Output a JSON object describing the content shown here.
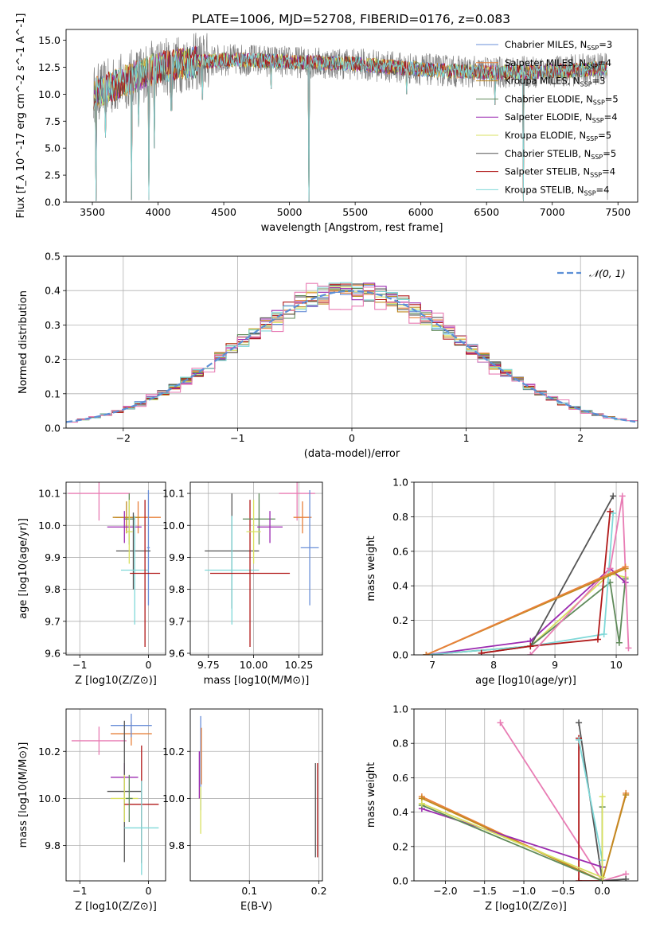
{
  "figure_title": "PLATE=1006, MJD=52708, FIBERID=0176, z=0.083",
  "colors": {
    "Chabrier MILES": "#6a8fd8",
    "Salpeter MILES": "#e8803a",
    "Kroupa MILES": "#c08a20",
    "Chabrier ELODIE": "#5f8a5a",
    "Salpeter ELODIE": "#9b2ab0",
    "Kroupa ELODIE": "#d8e060",
    "Chabrier STELIB": "#555555",
    "Salpeter STELIB": "#b01818",
    "Kroupa STELIB": "#7fd8d8",
    "extra_pink": "#e87cb4",
    "spectrum_grey": "#808080",
    "gaussian": "#5b8fd6"
  },
  "chart_data": [
    {
      "id": "spectrum",
      "type": "line",
      "title": "PLATE=1006, MJD=52708, FIBERID=0176, z=0.083",
      "xlabel": "wavelength [Angstrom, rest frame]",
      "ylabel": "Flux [f_λ 10^-17 erg cm^-2 s^-1 A^-1]",
      "xlim": [
        3300,
        7650
      ],
      "ylim": [
        0,
        16
      ],
      "xticks": [
        3500,
        4000,
        4500,
        5000,
        5500,
        6000,
        6500,
        7000,
        7500
      ],
      "yticks": [
        0.0,
        2.5,
        5.0,
        7.5,
        10.0,
        12.5,
        15.0
      ],
      "grid": false,
      "legend_position": "top-right",
      "legend": [
        {
          "label": "Chabrier MILES, N",
          "sub": "SSP",
          "tail": "=3",
          "color_key": "Chabrier MILES"
        },
        {
          "label": "Salpeter MILES, N",
          "sub": "SSP",
          "tail": "=4",
          "color_key": "Salpeter MILES"
        },
        {
          "label": "Kroupa MILES, N",
          "sub": "SSP",
          "tail": "=3",
          "color_key": "Kroupa MILES"
        },
        {
          "label": "Chabrier ELODIE, N",
          "sub": "SSP",
          "tail": "=5",
          "color_key": "Chabrier ELODIE"
        },
        {
          "label": "Salpeter ELODIE, N",
          "sub": "SSP",
          "tail": "=4",
          "color_key": "Salpeter ELODIE"
        },
        {
          "label": "Kroupa ELODIE, N",
          "sub": "SSP",
          "tail": "=5",
          "color_key": "Kroupa ELODIE"
        },
        {
          "label": "Chabrier STELIB, N",
          "sub": "SSP",
          "tail": "=5",
          "color_key": "Chabrier STELIB"
        },
        {
          "label": "Salpeter STELIB, N",
          "sub": "SSP",
          "tail": "=4",
          "color_key": "Salpeter STELIB"
        },
        {
          "label": "Kroupa STELIB, N",
          "sub": "SSP",
          "tail": "=4",
          "color_key": "Kroupa STELIB"
        }
      ],
      "continuum": [
        [
          3510,
          10.0
        ],
        [
          3700,
          11.0
        ],
        [
          4000,
          12.5
        ],
        [
          4300,
          13.0
        ],
        [
          4600,
          13.2
        ],
        [
          5000,
          13.0
        ],
        [
          5500,
          12.8
        ],
        [
          6000,
          12.3
        ],
        [
          6500,
          12.0
        ],
        [
          7000,
          12.1
        ],
        [
          7400,
          12.4
        ]
      ],
      "features": [
        [
          3530,
          0.1
        ],
        [
          3600,
          6.0
        ],
        [
          3800,
          0.2
        ],
        [
          3850,
          7.0
        ],
        [
          3930,
          0.2
        ],
        [
          3970,
          5.0
        ],
        [
          4101,
          8.5
        ],
        [
          4340,
          9.5
        ],
        [
          4861,
          10.5
        ],
        [
          5150,
          0.0
        ],
        [
          5890,
          10.0
        ],
        [
          6563,
          9.0
        ],
        [
          6780,
          0.1
        ],
        [
          7420,
          0.2
        ]
      ]
    },
    {
      "id": "residuals",
      "type": "histogram",
      "xlabel": "(data-model)/error",
      "ylabel": "Normed distribution",
      "xlim": [
        -2.5,
        2.5
      ],
      "ylim": [
        0,
        0.5
      ],
      "xticks": [
        -2,
        -1,
        0,
        1,
        2
      ],
      "yticks": [
        0.0,
        0.1,
        0.2,
        0.3,
        0.4,
        0.5
      ],
      "grid": true,
      "legend_position": "top-right",
      "legend_label": "𝒩(0, 1)",
      "bin_width": 0.1,
      "reference_curve": "gaussian N(0,1)"
    },
    {
      "id": "age_vs_Z",
      "type": "errorbar",
      "xlabel": "Z [log10(Z/Z⊙)]",
      "ylabel": "age [log10(age/yr)]",
      "xlim": [
        -1.2,
        0.25
      ],
      "ylim": [
        9.595,
        10.135
      ],
      "xticks": [
        -1,
        0
      ],
      "yticks": [
        9.6,
        9.7,
        9.8,
        9.9,
        10.0,
        10.1
      ],
      "grid": true,
      "points": [
        {
          "c": "extra_pink",
          "x": -0.72,
          "xerr": 0.45,
          "y": 10.1,
          "yerr": 0.085
        },
        {
          "c": "Salpeter MILES",
          "x": -0.15,
          "xerr": 0.33,
          "y": 10.025,
          "yerr": 0.05
        },
        {
          "c": "Kroupa MILES",
          "x": -0.32,
          "xerr": 0.2,
          "y": 10.025,
          "yerr": 0.05
        },
        {
          "c": "Chabrier ELODIE",
          "x": -0.28,
          "xerr": 0.08,
          "y": 10.02,
          "yerr": 0.08
        },
        {
          "c": "Salpeter ELODIE",
          "x": -0.35,
          "xerr": 0.25,
          "y": 9.995,
          "yerr": 0.05
        },
        {
          "c": "Chabrier MILES",
          "x": 0.0,
          "xerr": 0.02,
          "y": 9.93,
          "yerr": 0.18
        },
        {
          "c": "Chabrier STELIB",
          "x": -0.22,
          "xerr": 0.25,
          "y": 9.92,
          "yerr": 0.12
        },
        {
          "c": "Kroupa STELIB",
          "x": -0.2,
          "xerr": 0.2,
          "y": 9.86,
          "yerr": 0.17
        },
        {
          "c": "Salpeter STELIB",
          "x": -0.05,
          "xerr": 0.22,
          "y": 9.85,
          "yerr": 0.23
        },
        {
          "c": "Kroupa ELODIE",
          "x": -0.28,
          "xerr": 0.05,
          "y": 9.98,
          "yerr": 0.1
        }
      ]
    },
    {
      "id": "age_vs_mass",
      "type": "errorbar",
      "xlabel": "mass [log10(M/M⊙)]",
      "ylabel": "",
      "xlim": [
        9.65,
        10.38
      ],
      "ylim": [
        9.595,
        10.135
      ],
      "xticks": [
        9.75,
        10.0,
        10.25
      ],
      "yticks": [
        9.6,
        9.7,
        9.8,
        9.9,
        10.0,
        10.1
      ],
      "grid": true,
      "points": [
        {
          "c": "extra_pink",
          "x": 10.24,
          "xerr": 0.1,
          "y": 10.1,
          "yerr": 0.085
        },
        {
          "c": "Salpeter MILES",
          "x": 10.27,
          "xerr": 0.05,
          "y": 10.025,
          "yerr": 0.05
        },
        {
          "c": "Chabrier MILES",
          "x": 10.31,
          "xerr": 0.05,
          "y": 9.93,
          "yerr": 0.18
        },
        {
          "c": "Chabrier STELIB",
          "x": 9.88,
          "xerr": 0.15,
          "y": 9.92,
          "yerr": 0.18
        },
        {
          "c": "Kroupa STELIB",
          "x": 9.88,
          "xerr": 0.15,
          "y": 9.86,
          "yerr": 0.17
        },
        {
          "c": "Salpeter STELIB",
          "x": 9.98,
          "xerr": 0.22,
          "y": 9.85,
          "yerr": 0.23
        },
        {
          "c": "Chabrier ELODIE",
          "x": 10.03,
          "xerr": 0.09,
          "y": 10.02,
          "yerr": 0.08
        },
        {
          "c": "Salpeter ELODIE",
          "x": 10.09,
          "xerr": 0.07,
          "y": 9.995,
          "yerr": 0.05
        },
        {
          "c": "Kroupa ELODIE",
          "x": 10.0,
          "xerr": 0.04,
          "y": 9.98,
          "yerr": 0.1
        }
      ]
    },
    {
      "id": "weight_vs_age",
      "type": "line",
      "xlabel": "age [log10(age/yr)]",
      "ylabel": "mass weight",
      "xlim": [
        6.7,
        10.35
      ],
      "ylim": [
        0,
        1.0
      ],
      "xticks": [
        7,
        8,
        9,
        10
      ],
      "yticks": [
        0.0,
        0.2,
        0.4,
        0.6,
        0.8,
        1.0
      ],
      "grid": true,
      "series": [
        {
          "c": "Kroupa ELODIE",
          "pts": [
            [
              6.9,
              0.0
            ],
            [
              8.6,
              0.05
            ],
            [
              9.9,
              0.47
            ],
            [
              10.15,
              0.45
            ]
          ]
        },
        {
          "c": "Chabrier ELODIE",
          "pts": [
            [
              6.9,
              0.0
            ],
            [
              8.6,
              0.05
            ],
            [
              9.9,
              0.42
            ],
            [
              10.05,
              0.07
            ],
            [
              10.15,
              0.44
            ]
          ]
        },
        {
          "c": "Salpeter ELODIE",
          "pts": [
            [
              6.9,
              0.0
            ],
            [
              8.6,
              0.08
            ],
            [
              9.9,
              0.5
            ],
            [
              10.15,
              0.42
            ]
          ]
        },
        {
          "c": "Kroupa STELIB",
          "pts": [
            [
              6.9,
              0.0
            ],
            [
              8.6,
              0.05
            ],
            [
              9.8,
              0.12
            ],
            [
              9.95,
              0.82
            ]
          ]
        },
        {
          "c": "Chabrier STELIB",
          "pts": [
            [
              7.8,
              0.01
            ],
            [
              8.6,
              0.05
            ],
            [
              9.95,
              0.92
            ]
          ]
        },
        {
          "c": "Salpeter STELIB",
          "pts": [
            [
              7.8,
              0.01
            ],
            [
              8.6,
              0.05
            ],
            [
              9.7,
              0.09
            ],
            [
              9.9,
              0.83
            ]
          ]
        },
        {
          "c": "extra_pink",
          "pts": [
            [
              8.6,
              0.0
            ],
            [
              9.9,
              0.5
            ],
            [
              10.1,
              0.92
            ],
            [
              10.2,
              0.04
            ]
          ]
        },
        {
          "c": "Kroupa MILES",
          "pts": [
            [
              6.9,
              0.0
            ],
            [
              10.15,
              0.5
            ]
          ]
        },
        {
          "c": "Salpeter MILES",
          "pts": [
            [
              6.9,
              0.0
            ],
            [
              10.15,
              0.51
            ]
          ]
        }
      ]
    },
    {
      "id": "mass_vs_Z",
      "type": "errorbar",
      "xlabel": "Z [log10(Z/Z⊙)]",
      "ylabel": "mass [log10(M/M⊙)]",
      "xlim": [
        -1.2,
        0.25
      ],
      "ylim": [
        9.65,
        10.38
      ],
      "xticks": [
        -1,
        0
      ],
      "yticks": [
        9.8,
        10.0,
        10.2
      ],
      "grid": true,
      "points": [
        {
          "c": "extra_pink",
          "x": -0.72,
          "xerr": 0.4,
          "y": 10.245,
          "yerr": 0.06
        },
        {
          "c": "Salpeter MILES",
          "x": -0.25,
          "xerr": 0.3,
          "y": 10.275,
          "yerr": 0.05
        },
        {
          "c": "Chabrier MILES",
          "x": -0.25,
          "xerr": 0.3,
          "y": 10.31,
          "yerr": 0.05
        },
        {
          "c": "Salpeter ELODIE",
          "x": -0.35,
          "xerr": 0.2,
          "y": 10.09,
          "yerr": 0.06
        },
        {
          "c": "Chabrier STELIB",
          "x": -0.35,
          "xerr": 0.25,
          "y": 10.03,
          "yerr": 0.3
        },
        {
          "c": "Kroupa ELODIE",
          "x": -0.35,
          "xerr": 0.2,
          "y": 10.0,
          "yerr": 0.1
        },
        {
          "c": "Salpeter STELIB",
          "x": -0.1,
          "xerr": 0.25,
          "y": 9.975,
          "yerr": 0.25
        },
        {
          "c": "Kroupa STELIB",
          "x": -0.1,
          "xerr": 0.25,
          "y": 9.875,
          "yerr": 0.2
        },
        {
          "c": "Chabrier ELODIE",
          "x": -0.28,
          "xerr": 0.05,
          "y": 10.0,
          "yerr": 0.1
        }
      ]
    },
    {
      "id": "mass_vs_EBV",
      "type": "errorbar",
      "xlabel": "E(B-V)",
      "ylabel": "",
      "xlim": [
        0.015,
        0.205
      ],
      "ylim": [
        9.65,
        10.38
      ],
      "xticks": [
        0.1,
        0.2
      ],
      "yticks": [
        9.8,
        10.0,
        10.2
      ],
      "grid": true,
      "points": [
        {
          "c": "Chabrier MILES",
          "x": 0.03,
          "xerr": 0.0,
          "y": 10.15,
          "yerr": 0.2
        },
        {
          "c": "Salpeter MILES",
          "x": 0.031,
          "xerr": 0.0,
          "y": 10.18,
          "yerr": 0.12
        },
        {
          "c": "Salpeter ELODIE",
          "x": 0.028,
          "xerr": 0.0,
          "y": 10.1,
          "yerr": 0.1
        },
        {
          "c": "Kroupa ELODIE",
          "x": 0.03,
          "xerr": 0.0,
          "y": 9.95,
          "yerr": 0.1
        },
        {
          "c": "Chabrier STELIB",
          "x": 0.195,
          "xerr": 0.0,
          "y": 9.95,
          "yerr": 0.2
        },
        {
          "c": "Salpeter STELIB",
          "x": 0.198,
          "xerr": 0.0,
          "y": 9.95,
          "yerr": 0.2
        }
      ]
    },
    {
      "id": "weight_vs_Z",
      "type": "line",
      "xlabel": "Z [log10(Z/Z⊙)]",
      "ylabel": "mass weight",
      "xlim": [
        -2.4,
        0.45
      ],
      "ylim": [
        0,
        1.0
      ],
      "xticks": [
        -2.0,
        -1.5,
        -1.0,
        -0.5,
        0.0
      ],
      "yticks": [
        0.0,
        0.2,
        0.4,
        0.6,
        0.8,
        1.0
      ],
      "grid": true,
      "series": [
        {
          "c": "extra_pink",
          "pts": [
            [
              -1.3,
              0.92
            ],
            [
              0.0,
              0.0
            ],
            [
              0.3,
              0.04
            ]
          ]
        },
        {
          "c": "Chabrier STELIB",
          "pts": [
            [
              -0.3,
              0.92
            ],
            [
              0.0,
              0.0
            ],
            [
              0.3,
              0.01
            ]
          ]
        },
        {
          "c": "Salpeter STELIB",
          "pts": [
            [
              -0.3,
              0.83
            ],
            [
              -0.3,
              0.0
            ],
            [
              0.0,
              0.0
            ]
          ]
        },
        {
          "c": "Kroupa STELIB",
          "pts": [
            [
              -0.3,
              0.82
            ],
            [
              0.0,
              0.12
            ],
            [
              0.0,
              0.0
            ]
          ]
        },
        {
          "c": "Salpeter MILES",
          "pts": [
            [
              -2.3,
              0.49
            ],
            [
              0.0,
              0.0
            ],
            [
              0.3,
              0.51
            ]
          ]
        },
        {
          "c": "Kroupa MILES",
          "pts": [
            [
              -2.3,
              0.48
            ],
            [
              0.0,
              0.0
            ],
            [
              0.3,
              0.5
            ]
          ]
        },
        {
          "c": "Salpeter ELODIE",
          "pts": [
            [
              -2.3,
              0.42
            ],
            [
              0.0,
              0.08
            ],
            [
              0.0,
              0.0
            ]
          ]
        },
        {
          "c": "Chabrier ELODIE",
          "pts": [
            [
              -2.3,
              0.44
            ],
            [
              0.0,
              0.0
            ],
            [
              0.0,
              0.43
            ]
          ]
        },
        {
          "c": "Kroupa ELODIE",
          "pts": [
            [
              -2.3,
              0.45
            ],
            [
              0.0,
              0.02
            ],
            [
              0.0,
              0.49
            ]
          ]
        }
      ]
    }
  ]
}
